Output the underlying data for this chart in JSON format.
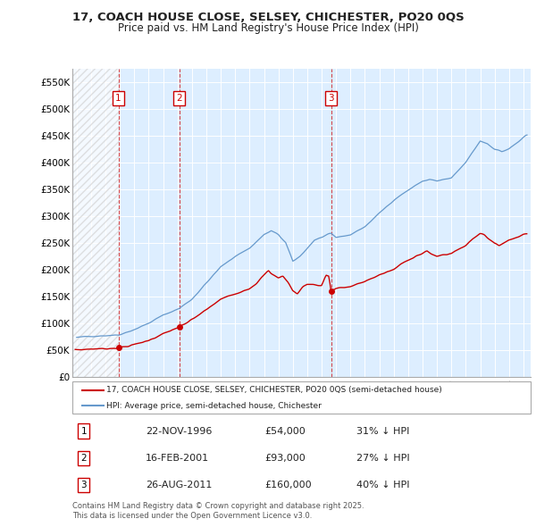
{
  "title": "17, COACH HOUSE CLOSE, SELSEY, CHICHESTER, PO20 0QS",
  "subtitle": "Price paid vs. HM Land Registry's House Price Index (HPI)",
  "hpi_label": "HPI: Average price, semi-detached house, Chichester",
  "property_label": "17, COACH HOUSE CLOSE, SELSEY, CHICHESTER, PO20 0QS (semi-detached house)",
  "footer": "Contains HM Land Registry data © Crown copyright and database right 2025.\nThis data is licensed under the Open Government Licence v3.0.",
  "hpi_color": "#6699cc",
  "price_color": "#cc0000",
  "bg_color": "#ddeeff",
  "ylim": [
    0,
    575000
  ],
  "ytick_vals": [
    0,
    50000,
    100000,
    150000,
    200000,
    250000,
    300000,
    350000,
    400000,
    450000,
    500000,
    550000
  ],
  "ytick_labels": [
    "£0",
    "£50K",
    "£100K",
    "£150K",
    "£200K",
    "£250K",
    "£300K",
    "£350K",
    "£400K",
    "£450K",
    "£500K",
    "£550K"
  ],
  "xlim_start": 1993.7,
  "xlim_end": 2025.5,
  "transactions": [
    {
      "num": 1,
      "date": "22-NOV-1996",
      "year": 1996.9,
      "price": 54000,
      "pct": "31%",
      "dir": "↓"
    },
    {
      "num": 2,
      "date": "16-FEB-2001",
      "year": 2001.12,
      "price": 93000,
      "pct": "27%",
      "dir": "↓"
    },
    {
      "num": 3,
      "date": "26-AUG-2011",
      "year": 2011.65,
      "price": 160000,
      "pct": "40%",
      "dir": "↓"
    }
  ]
}
